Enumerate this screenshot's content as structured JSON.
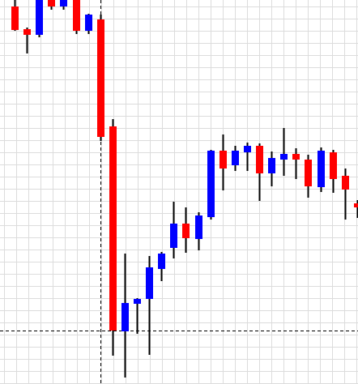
{
  "chart_data": {
    "type": "candlestick",
    "title": "",
    "xlabel": "",
    "ylabel": "",
    "grid": true,
    "ylim": [
      0,
      474
    ],
    "colors": {
      "up": "#0000ff",
      "down": "#ff0000",
      "wick": "#000000",
      "grid": "#dcdcdc",
      "crosshair": "#000000",
      "background": "#ffffff"
    },
    "crosshair": {
      "x_index": 7,
      "y_value": 66
    },
    "candles": [
      {
        "i": 0,
        "open": 466,
        "high": 474,
        "low": 436,
        "close": 437,
        "dir": "down"
      },
      {
        "i": 1,
        "open": 438,
        "high": 440,
        "low": 408,
        "close": 431,
        "dir": "down"
      },
      {
        "i": 2,
        "open": 431,
        "high": 474,
        "low": 428,
        "close": 474,
        "dir": "up"
      },
      {
        "i": 3,
        "open": 474,
        "high": 474,
        "low": 462,
        "close": 466,
        "dir": "down"
      },
      {
        "i": 4,
        "open": 466,
        "high": 474,
        "low": 462,
        "close": 474,
        "dir": "up"
      },
      {
        "i": 5,
        "open": 474,
        "high": 474,
        "low": 432,
        "close": 436,
        "dir": "down"
      },
      {
        "i": 6,
        "open": 436,
        "high": 457,
        "low": 432,
        "close": 456,
        "dir": "up"
      },
      {
        "i": 7,
        "open": 450,
        "high": 456,
        "low": 300,
        "close": 305,
        "dir": "down"
      },
      {
        "i": 8,
        "open": 318,
        "high": 327,
        "low": 35,
        "close": 66,
        "dir": "down"
      },
      {
        "i": 9,
        "open": 65,
        "high": 161,
        "low": 8,
        "close": 100,
        "dir": "up"
      },
      {
        "i": 10,
        "open": 99,
        "high": 106,
        "low": 62,
        "close": 105,
        "dir": "up"
      },
      {
        "i": 11,
        "open": 105,
        "high": 158,
        "low": 36,
        "close": 144,
        "dir": "up"
      },
      {
        "i": 12,
        "open": 142,
        "high": 163,
        "low": 127,
        "close": 161,
        "dir": "up"
      },
      {
        "i": 13,
        "open": 168,
        "high": 225,
        "low": 155,
        "close": 198,
        "dir": "up"
      },
      {
        "i": 14,
        "open": 198,
        "high": 218,
        "low": 162,
        "close": 180,
        "dir": "down"
      },
      {
        "i": 15,
        "open": 179,
        "high": 212,
        "low": 165,
        "close": 208,
        "dir": "up"
      },
      {
        "i": 16,
        "open": 206,
        "high": 289,
        "low": 203,
        "close": 288,
        "dir": "up"
      },
      {
        "i": 17,
        "open": 288,
        "high": 308,
        "low": 239,
        "close": 266,
        "dir": "down"
      },
      {
        "i": 18,
        "open": 270,
        "high": 294,
        "low": 263,
        "close": 288,
        "dir": "up"
      },
      {
        "i": 19,
        "open": 286,
        "high": 298,
        "low": 263,
        "close": 294,
        "dir": "up"
      },
      {
        "i": 20,
        "open": 294,
        "high": 297,
        "low": 226,
        "close": 260,
        "dir": "down"
      },
      {
        "i": 21,
        "open": 260,
        "high": 287,
        "low": 244,
        "close": 279,
        "dir": "up"
      },
      {
        "i": 22,
        "open": 277,
        "high": 316,
        "low": 257,
        "close": 284,
        "dir": "up"
      },
      {
        "i": 23,
        "open": 284,
        "high": 291,
        "low": 253,
        "close": 277,
        "dir": "down"
      },
      {
        "i": 24,
        "open": 277,
        "high": 283,
        "low": 230,
        "close": 244,
        "dir": "down"
      },
      {
        "i": 25,
        "open": 243,
        "high": 292,
        "low": 237,
        "close": 288,
        "dir": "up"
      },
      {
        "i": 26,
        "open": 286,
        "high": 289,
        "low": 236,
        "close": 253,
        "dir": "down"
      },
      {
        "i": 27,
        "open": 257,
        "high": 266,
        "low": 203,
        "close": 240,
        "dir": "down"
      },
      {
        "i": 28,
        "open": 223,
        "high": 227,
        "low": 205,
        "close": 218,
        "dir": "down"
      }
    ]
  }
}
